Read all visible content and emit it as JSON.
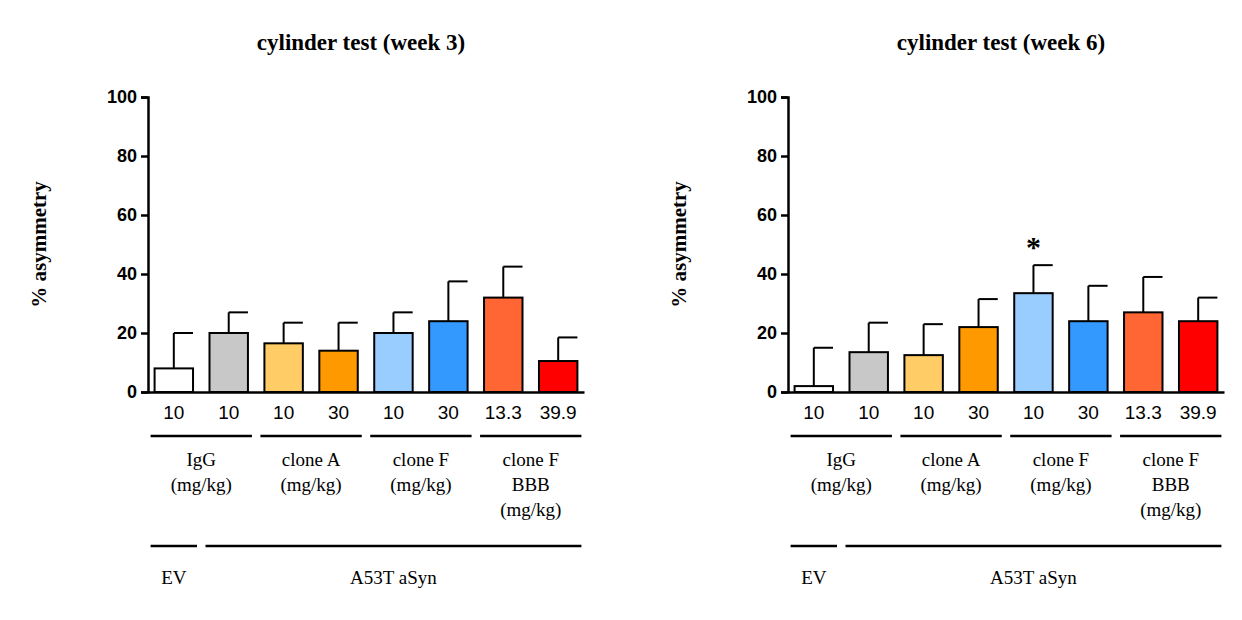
{
  "chart_data": [
    {
      "type": "bar",
      "title": "cylinder test (week 3)",
      "y_label": "% asymmetry",
      "categories": [
        "10",
        "10",
        "10",
        "30",
        "10",
        "30",
        "13.3",
        "39.9"
      ],
      "values": [
        8,
        20,
        16.5,
        14,
        20,
        24,
        32,
        10.5
      ],
      "errors": [
        12,
        7,
        7,
        9.5,
        7,
        13.5,
        10.5,
        8
      ],
      "colors": [
        "#ffffff",
        "#c8c8c8",
        "#ffcc66",
        "#ff9900",
        "#99ccff",
        "#3399ff",
        "#ff6633",
        "#ff0000"
      ],
      "ylim": [
        0,
        100
      ],
      "yticks": [
        0,
        20,
        40,
        60,
        80,
        100
      ],
      "grid": false,
      "groups": [
        {
          "label": [
            "IgG",
            "(mg/kg)"
          ],
          "from": 0,
          "to": 1
        },
        {
          "label": [
            "clone A",
            "(mg/kg)"
          ],
          "from": 2,
          "to": 3
        },
        {
          "label": [
            "clone F",
            "(mg/kg)"
          ],
          "from": 4,
          "to": 5
        },
        {
          "label": [
            "clone F",
            "BBB",
            "(mg/kg)"
          ],
          "from": 6,
          "to": 7
        }
      ],
      "conditions": [
        {
          "label": "EV",
          "from": 0,
          "to": 0
        },
        {
          "label": "A53T aSyn",
          "from": 1,
          "to": 7
        }
      ]
    },
    {
      "type": "bar",
      "title": "cylinder test (week 6)",
      "y_label": "% asymmetry",
      "categories": [
        "10",
        "10",
        "10",
        "30",
        "10",
        "30",
        "13.3",
        "39.9"
      ],
      "values": [
        2,
        13.5,
        12.5,
        22,
        33.5,
        24,
        27,
        24
      ],
      "errors": [
        13,
        10,
        10.5,
        9.5,
        9.5,
        12,
        12,
        8
      ],
      "colors": [
        "#ffffff",
        "#c8c8c8",
        "#ffcc66",
        "#ff9900",
        "#99ccff",
        "#3399ff",
        "#ff6633",
        "#ff0000"
      ],
      "ylim": [
        0,
        100
      ],
      "yticks": [
        0,
        20,
        40,
        60,
        80,
        100
      ],
      "grid": false,
      "groups": [
        {
          "label": [
            "IgG",
            "(mg/kg)"
          ],
          "from": 0,
          "to": 1
        },
        {
          "label": [
            "clone A",
            "(mg/kg)"
          ],
          "from": 2,
          "to": 3
        },
        {
          "label": [
            "clone F",
            "(mg/kg)"
          ],
          "from": 4,
          "to": 5
        },
        {
          "label": [
            "clone F",
            "BBB",
            "(mg/kg)"
          ],
          "from": 6,
          "to": 7
        }
      ],
      "conditions": [
        {
          "label": "EV",
          "from": 0,
          "to": 0
        },
        {
          "label": "A53T aSyn",
          "from": 1,
          "to": 7
        }
      ],
      "annotations": [
        {
          "text": "*",
          "index": 4
        }
      ]
    }
  ]
}
